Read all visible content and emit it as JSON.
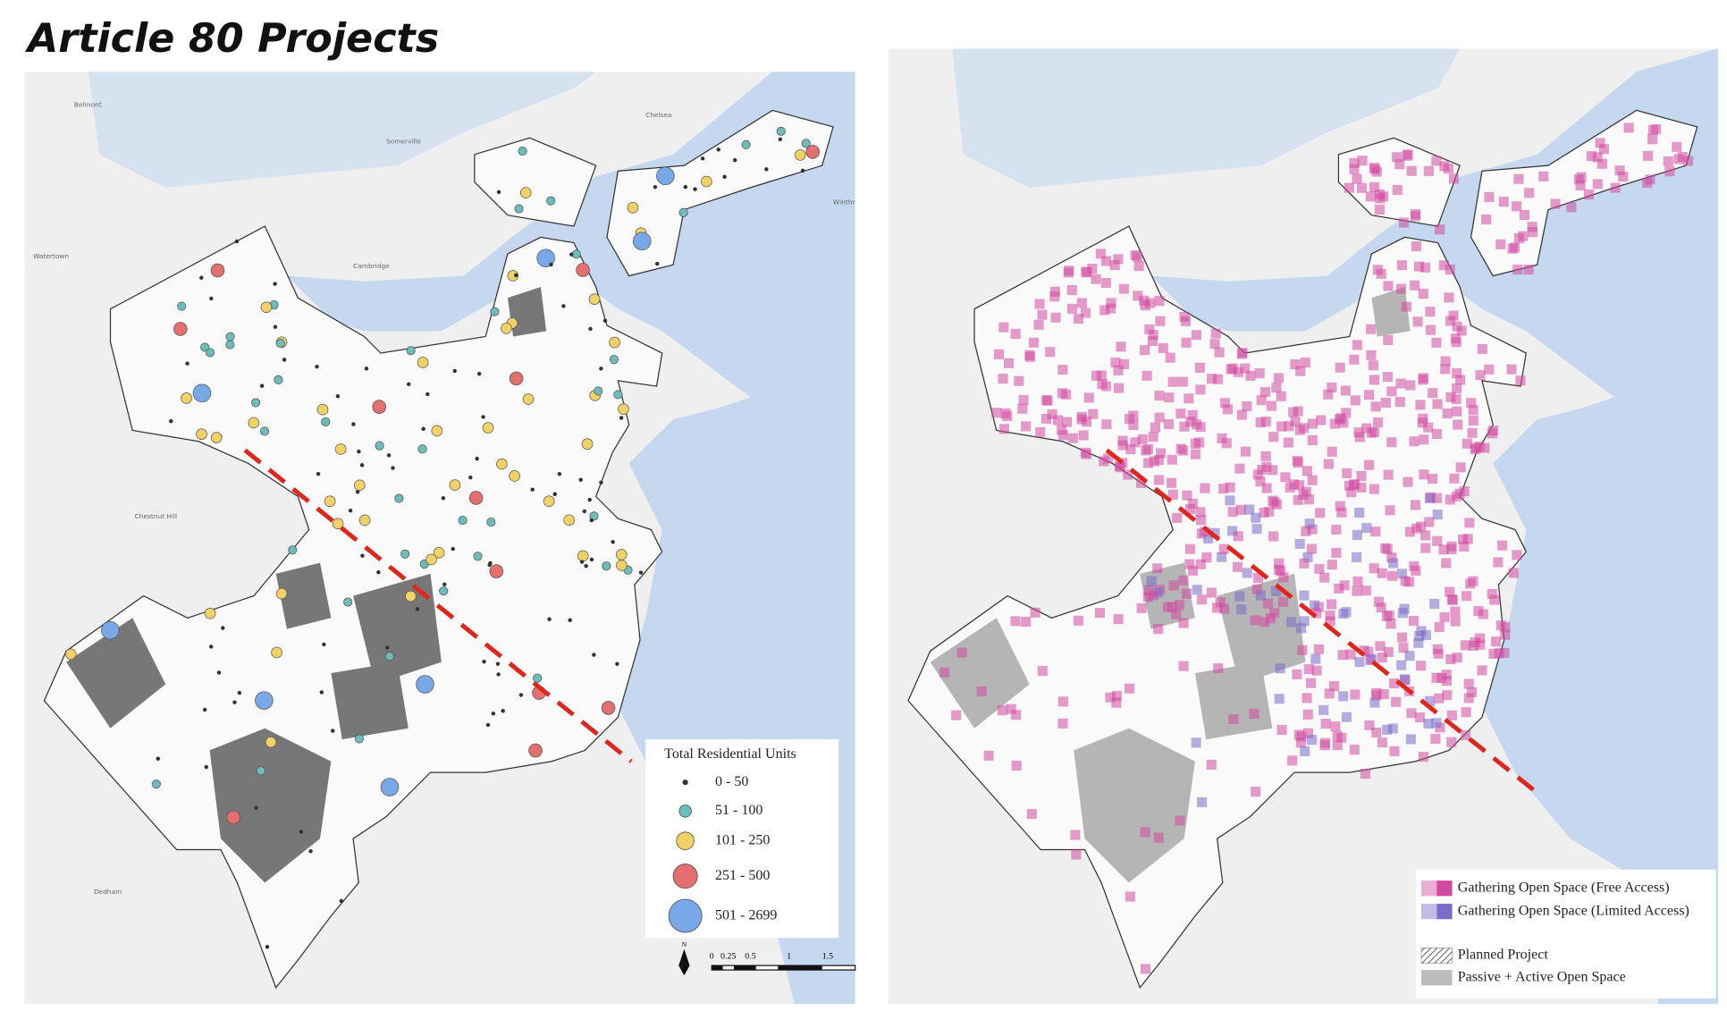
{
  "title": "Article 80 Projects",
  "left_map": {
    "place_labels": [
      "Belmont",
      "Somerville",
      "Chelsea",
      "Cambridge",
      "Watertown",
      "Chestnut Hill",
      "Dedham",
      "Winthr"
    ],
    "legend": {
      "title": "Total Residential Units",
      "items": [
        {
          "label": "0 - 50",
          "color": "#333333"
        },
        {
          "label": "51 - 100",
          "color": "#6cbcbc"
        },
        {
          "label": "101 - 250",
          "color": "#f2d266"
        },
        {
          "label": "251 - 500",
          "color": "#e36f6f"
        },
        {
          "label": "501 - 2699",
          "color": "#79a8e8"
        }
      ]
    },
    "north": "N",
    "scale_labels": [
      "0",
      "0.25",
      "0.5",
      "1",
      "1.5"
    ]
  },
  "right_map": {
    "legend": {
      "items": [
        {
          "label": "Gathering Open Space (Free Access)",
          "color": "#d14aa0"
        },
        {
          "label": "Gathering Open Space (Limited Access)",
          "color": "#7a6cc8"
        },
        {
          "label": "Planned Project",
          "color": "#888888"
        },
        {
          "label": "Passive + Active Open Space",
          "color": "#bdbdbd"
        }
      ]
    }
  }
}
